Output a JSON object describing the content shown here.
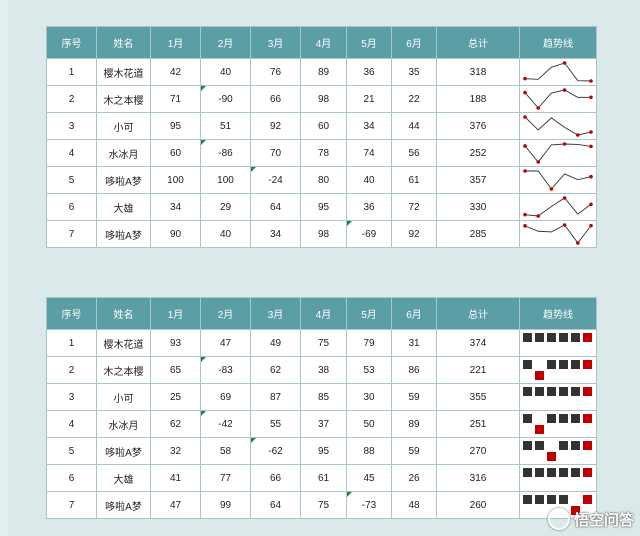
{
  "headers": [
    "序号",
    "姓名",
    "1月",
    "2月",
    "3月",
    "4月",
    "5月",
    "6月",
    "总计",
    "趋势线"
  ],
  "table1": {
    "rows": [
      {
        "id": "1",
        "name": "樱木花道",
        "months": [
          42,
          40,
          76,
          89,
          36,
          35
        ],
        "total": "318",
        "flags": []
      },
      {
        "id": "2",
        "name": "木之本樱",
        "months": [
          71,
          -90,
          66,
          98,
          21,
          22
        ],
        "total": "188",
        "flags": [
          1
        ]
      },
      {
        "id": "3",
        "name": "小可",
        "months": [
          95,
          51,
          92,
          60,
          34,
          44
        ],
        "total": "376",
        "flags": []
      },
      {
        "id": "4",
        "name": "水冰月",
        "months": [
          60,
          -86,
          70,
          78,
          74,
          56
        ],
        "total": "252",
        "flags": [
          1
        ]
      },
      {
        "id": "5",
        "name": "哆啦A梦",
        "months": [
          100,
          100,
          -24,
          80,
          40,
          61
        ],
        "total": "357",
        "flags": [
          2
        ]
      },
      {
        "id": "6",
        "name": "大雄",
        "months": [
          34,
          29,
          64,
          95,
          36,
          72
        ],
        "total": "330",
        "flags": []
      },
      {
        "id": "7",
        "name": "哆啦A梦",
        "months": [
          90,
          40,
          34,
          98,
          -69,
          92
        ],
        "total": "285",
        "flags": [
          4
        ]
      }
    ]
  },
  "table2": {
    "rows": [
      {
        "id": "1",
        "name": "樱木花道",
        "months": [
          93,
          47,
          49,
          75,
          79,
          31
        ],
        "total": "374",
        "flags": []
      },
      {
        "id": "2",
        "name": "木之本樱",
        "months": [
          65,
          -83,
          62,
          38,
          53,
          86
        ],
        "total": "221",
        "flags": [
          1
        ]
      },
      {
        "id": "3",
        "name": "小可",
        "months": [
          25,
          69,
          87,
          85,
          30,
          59
        ],
        "total": "355",
        "flags": []
      },
      {
        "id": "4",
        "name": "水冰月",
        "months": [
          62,
          -42,
          55,
          37,
          50,
          89
        ],
        "total": "251",
        "flags": [
          1
        ]
      },
      {
        "id": "5",
        "name": "哆啦A梦",
        "months": [
          32,
          58,
          -62,
          95,
          88,
          59
        ],
        "total": "270",
        "flags": [
          2
        ]
      },
      {
        "id": "6",
        "name": "大雄",
        "months": [
          41,
          77,
          66,
          61,
          45,
          26
        ],
        "total": "316",
        "flags": []
      },
      {
        "id": "7",
        "name": "哆啦A梦",
        "months": [
          47,
          99,
          64,
          75,
          -73,
          48
        ],
        "total": "260",
        "flags": [
          4
        ]
      }
    ]
  },
  "colors": {
    "header_bg": "#5b9ea5",
    "line": "#333333",
    "marker_highlight": "#c00000",
    "win_loss_dark": "#333333",
    "win_loss_highlight": "#c00000",
    "flag": "#1f8a3a"
  },
  "watermark": {
    "text": "悟空问答",
    "icon": "watermark-logo-icon"
  }
}
